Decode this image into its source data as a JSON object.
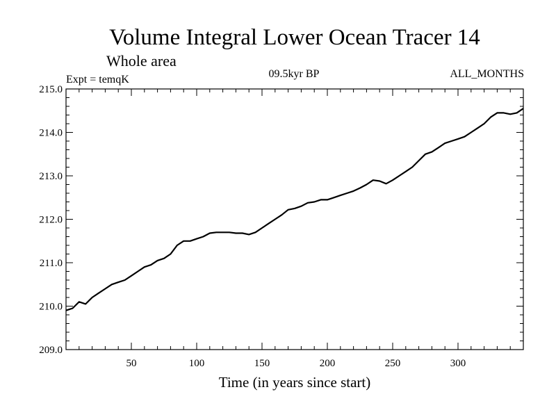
{
  "chart_data": {
    "type": "line",
    "title": "Volume Integral Lower Ocean Tracer 14",
    "subtitle": "Whole area",
    "expt_label": "Expt = temqK",
    "period_label": "09.5kyr BP",
    "months_label": "ALL_MONTHS",
    "xlabel": "Time (in years since start)",
    "ylabel": "",
    "xlim": [
      0,
      350
    ],
    "ylim": [
      209.0,
      215.0
    ],
    "x_ticks": [
      50,
      100,
      150,
      200,
      250,
      300
    ],
    "y_ticks": [
      "209.0",
      "210.0",
      "211.0",
      "212.0",
      "213.0",
      "214.0",
      "215.0"
    ],
    "series": [
      {
        "name": "Tracer 14",
        "x": [
          0,
          5,
          10,
          15,
          20,
          25,
          30,
          35,
          40,
          45,
          50,
          55,
          60,
          65,
          70,
          75,
          80,
          85,
          90,
          95,
          100,
          105,
          110,
          115,
          120,
          125,
          130,
          135,
          140,
          145,
          150,
          155,
          160,
          165,
          170,
          175,
          180,
          185,
          190,
          195,
          200,
          205,
          210,
          215,
          220,
          225,
          230,
          235,
          240,
          245,
          250,
          255,
          260,
          265,
          270,
          275,
          280,
          285,
          290,
          295,
          300,
          305,
          310,
          315,
          320,
          325,
          330,
          335,
          340,
          345,
          350
        ],
        "values": [
          209.9,
          209.95,
          210.1,
          210.05,
          210.2,
          210.3,
          210.4,
          210.5,
          210.55,
          210.6,
          210.7,
          210.8,
          210.9,
          210.95,
          211.05,
          211.1,
          211.2,
          211.4,
          211.5,
          211.5,
          211.55,
          211.6,
          211.68,
          211.7,
          211.7,
          211.7,
          211.68,
          211.68,
          211.65,
          211.7,
          211.8,
          211.9,
          212.0,
          212.1,
          212.22,
          212.25,
          212.3,
          212.38,
          212.4,
          212.45,
          212.45,
          212.5,
          212.55,
          212.6,
          212.65,
          212.72,
          212.8,
          212.9,
          212.88,
          212.82,
          212.9,
          213.0,
          213.1,
          213.2,
          213.35,
          213.5,
          213.55,
          213.65,
          213.75,
          213.8,
          213.85,
          213.9,
          214.0,
          214.1,
          214.2,
          214.35,
          214.45,
          214.45,
          214.42,
          214.45,
          214.55
        ]
      }
    ]
  }
}
